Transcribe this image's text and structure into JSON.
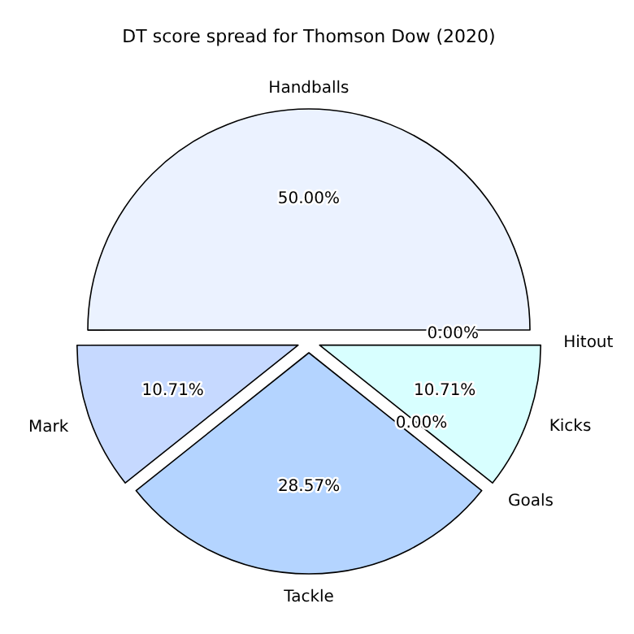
{
  "chart_data": {
    "type": "pie",
    "title": "DT score spread for Thomson Dow (2020)",
    "categories": [
      "Handballs",
      "Mark",
      "Tackle",
      "Goals",
      "Kicks",
      "Hitout"
    ],
    "values": [
      50,
      10.71,
      28.57,
      0,
      10.71,
      0
    ],
    "value_labels": [
      "50.00%",
      "10.71%",
      "28.57%",
      "0.00%",
      "10.71%",
      "0.00%"
    ],
    "colors": [
      "#ebf2ff",
      "#c6d9ff",
      "#b4d4ff",
      null,
      "#d8ffff",
      null
    ]
  }
}
